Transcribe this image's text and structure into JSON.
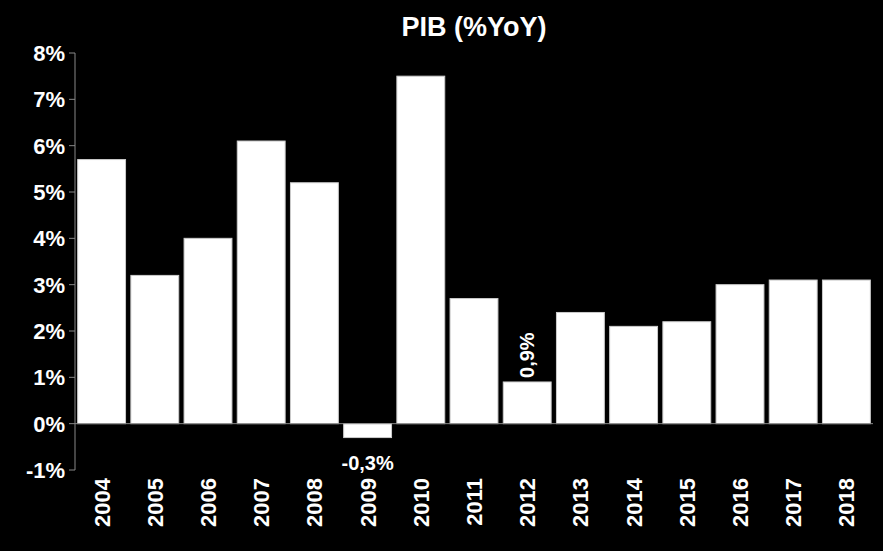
{
  "chart_data": {
    "type": "bar",
    "title": "PIB (%YoY)",
    "categories": [
      "2004",
      "2005",
      "2006",
      "2007",
      "2008",
      "2009",
      "2010",
      "2011",
      "2012",
      "2013",
      "2014",
      "2015",
      "2016",
      "2017",
      "2018"
    ],
    "values": [
      5.7,
      3.2,
      4.0,
      6.1,
      5.2,
      -0.3,
      7.5,
      2.7,
      0.9,
      2.4,
      2.1,
      2.2,
      3.0,
      3.1,
      3.1
    ],
    "value_labels": [
      null,
      null,
      null,
      null,
      null,
      "-0,3%",
      null,
      null,
      "0,9%",
      null,
      null,
      null,
      null,
      null,
      null
    ],
    "data_labels": true,
    "color": "#ffffff",
    "ylim": [
      -1,
      8
    ],
    "yticks": [
      {
        "value": -1,
        "label": "-1%"
      },
      {
        "value": 0,
        "label": "0%"
      },
      {
        "value": 1,
        "label": "1%"
      },
      {
        "value": 2,
        "label": "2%"
      },
      {
        "value": 3,
        "label": "3%"
      },
      {
        "value": 4,
        "label": "4%"
      },
      {
        "value": 5,
        "label": "5%"
      },
      {
        "value": 6,
        "label": "6%"
      },
      {
        "value": 7,
        "label": "7%"
      },
      {
        "value": 8,
        "label": "8%"
      }
    ],
    "grid": false
  }
}
